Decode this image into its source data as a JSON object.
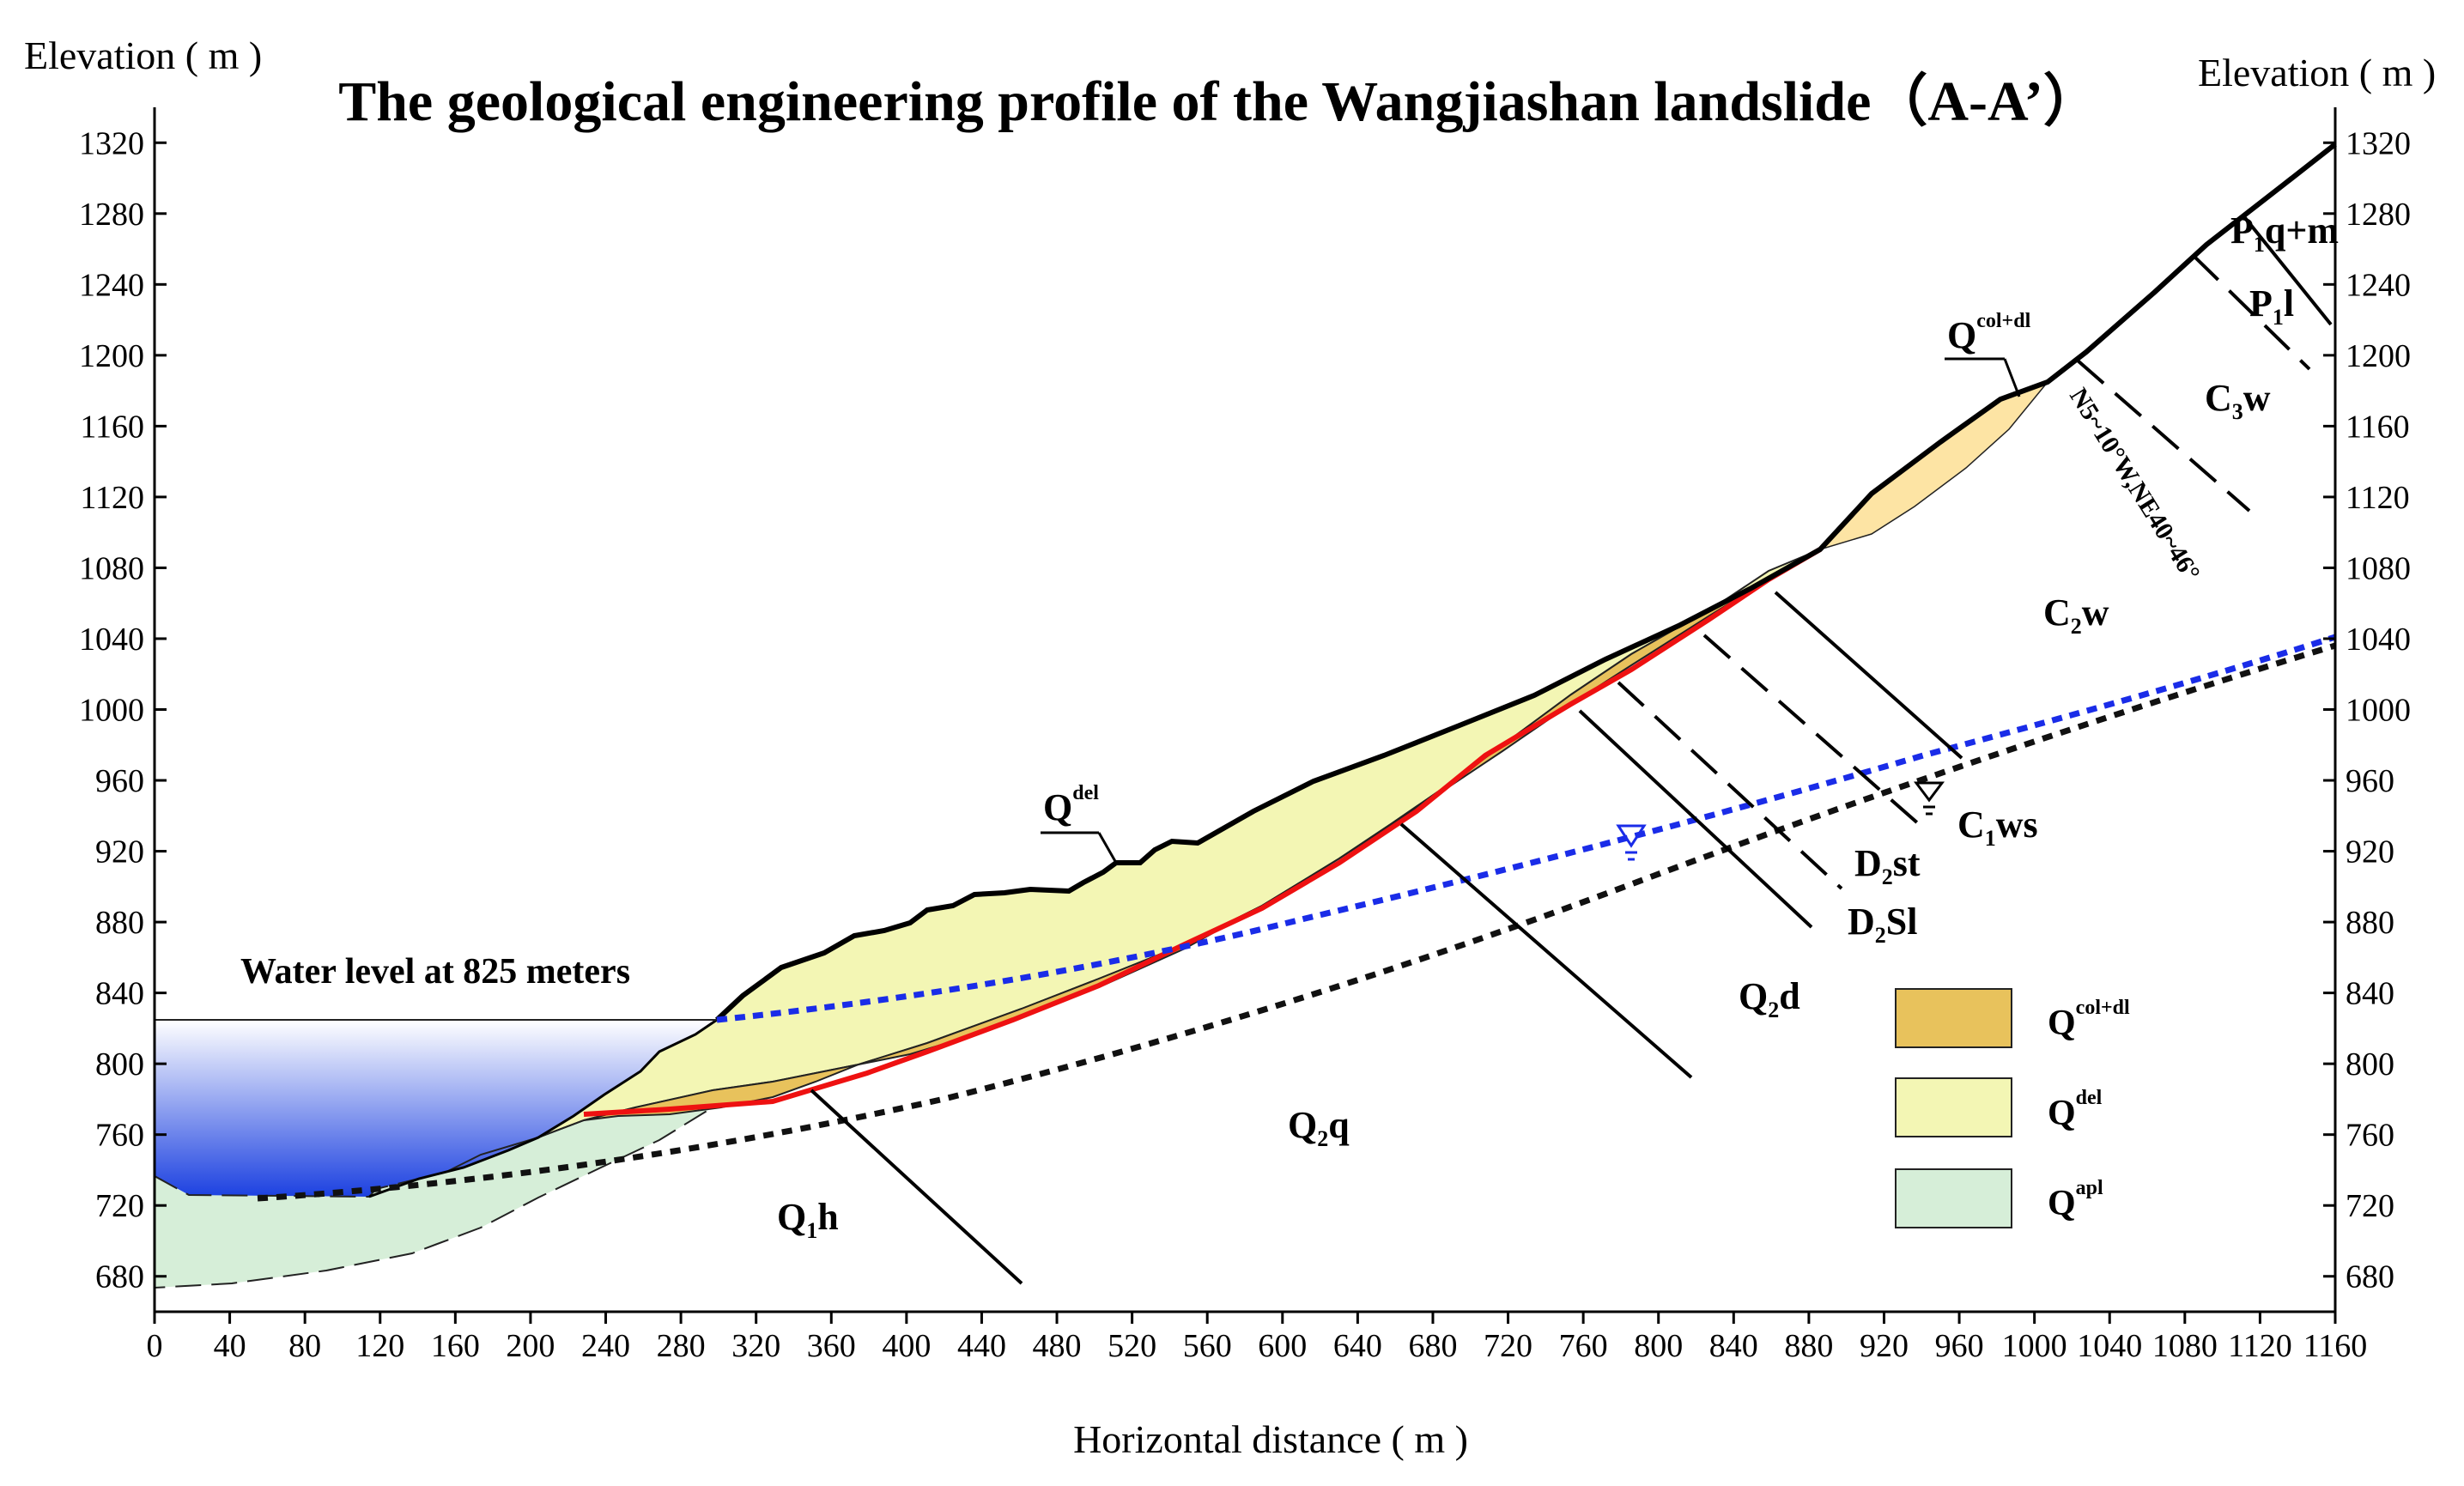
{
  "title": "The geological engineering profile of the Wangjiashan landslide（A-A’）",
  "axes": {
    "left_label": "Elevation ( m )",
    "right_label": "Elevation ( m )",
    "x_label": "Horizontal distance ( m )",
    "y_ticks": [
      "680",
      "720",
      "760",
      "800",
      "840",
      "880",
      "920",
      "960",
      "1000",
      "1040",
      "1080",
      "1120",
      "1160",
      "1200",
      "1240",
      "1280",
      "1320"
    ],
    "x_ticks": [
      "0",
      "40",
      "80",
      "120",
      "160",
      "200",
      "240",
      "280",
      "320",
      "360",
      "400",
      "440",
      "480",
      "520",
      "560",
      "600",
      "640",
      "680",
      "720",
      "760",
      "800",
      "840",
      "880",
      "920",
      "960",
      "1000",
      "1040",
      "1080",
      "1120",
      "1160"
    ],
    "x_range": [
      0,
      1160
    ],
    "y_range": [
      660,
      1340
    ]
  },
  "annotations": {
    "water_level": "Water level at 825 meters",
    "attitude": "N5~10°W,NE40~46°"
  },
  "units": {
    "q1h": {
      "main": "Q",
      "sub": "1",
      "rest": "h"
    },
    "q2q": {
      "main": "Q",
      "sub": "2",
      "rest": "q"
    },
    "q2d": {
      "main": "Q",
      "sub": "2",
      "rest": "d"
    },
    "d2sl": {
      "main": "D",
      "sub": "2",
      "rest": "Sl"
    },
    "d2st": {
      "main": "D",
      "sub": "2",
      "rest": "st"
    },
    "c1ws": {
      "main": "C",
      "sub": "1",
      "rest": "ws"
    },
    "c2w": {
      "main": "C",
      "sub": "2",
      "rest": "w"
    },
    "c3w": {
      "main": "C",
      "sub": "3",
      "rest": "w"
    },
    "p1l": {
      "main": "P",
      "sub": "1",
      "rest": "l"
    },
    "p1qm": {
      "main": "P",
      "sub": "1",
      "rest": "q+m"
    },
    "qdel_callout": {
      "main": "Q",
      "sup": "del"
    },
    "qcoldl_callout": {
      "main": "Q",
      "sup": "col+dl"
    }
  },
  "legend": [
    {
      "main": "Q",
      "sup": "col+dl",
      "color": "#e8c25c"
    },
    {
      "main": "Q",
      "sup": "del",
      "color": "#f3f6b4"
    },
    {
      "main": "Q",
      "sup": "apl",
      "color": "#d6eed8"
    }
  ],
  "colors": {
    "water_top": "#ffffff",
    "water_bottom": "#1a3fe0",
    "groundwater": "#1a2ce8",
    "sliding_surface": "#ee1111",
    "col_dl": "#e8c25c",
    "del": "#f3f6b4",
    "apl": "#d6eed8"
  }
}
